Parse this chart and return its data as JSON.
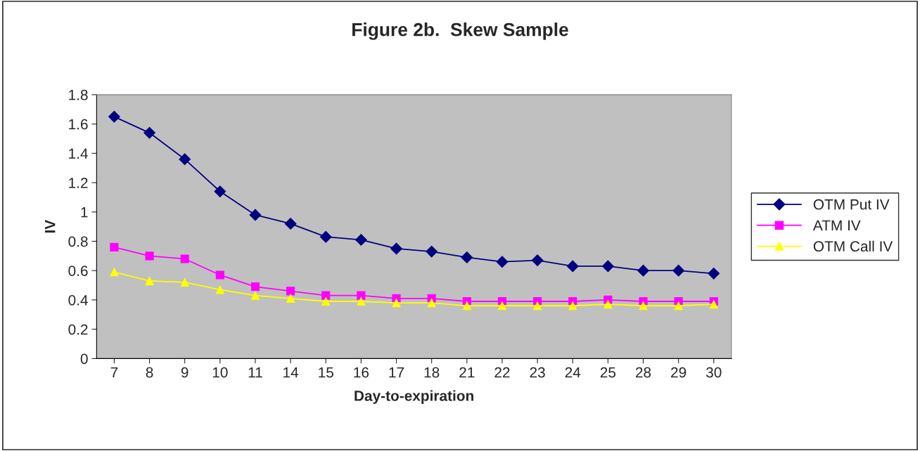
{
  "chart_data": {
    "type": "line",
    "title": "Figure 2b.  Skew Sample",
    "xlabel": "Day-to-expiration",
    "ylabel": "IV",
    "categories": [
      "7",
      "8",
      "9",
      "10",
      "11",
      "14",
      "15",
      "16",
      "17",
      "18",
      "21",
      "22",
      "23",
      "24",
      "25",
      "28",
      "29",
      "30"
    ],
    "series": [
      {
        "name": "OTM Put IV",
        "color": "#000080",
        "marker": "diamond",
        "values": [
          1.65,
          1.54,
          1.36,
          1.14,
          0.98,
          0.92,
          0.83,
          0.81,
          0.75,
          0.73,
          0.69,
          0.66,
          0.67,
          0.63,
          0.63,
          0.6,
          0.6,
          0.58
        ]
      },
      {
        "name": "ATM IV",
        "color": "#ff00ff",
        "marker": "square",
        "values": [
          0.76,
          0.7,
          0.68,
          0.57,
          0.49,
          0.46,
          0.43,
          0.43,
          0.41,
          0.41,
          0.39,
          0.39,
          0.39,
          0.39,
          0.4,
          0.39,
          0.39,
          0.39
        ]
      },
      {
        "name": "OTM Call IV",
        "color": "#ffff00",
        "marker": "triangle",
        "values": [
          0.59,
          0.53,
          0.52,
          0.47,
          0.43,
          0.41,
          0.39,
          0.39,
          0.38,
          0.38,
          0.36,
          0.36,
          0.36,
          0.36,
          0.37,
          0.36,
          0.36,
          0.37
        ]
      }
    ],
    "ylim": [
      0,
      1.8
    ],
    "yticks": [
      0,
      0.2,
      0.4,
      0.6,
      0.8,
      1,
      1.2,
      1.4,
      1.6,
      1.8
    ],
    "grid": false,
    "legend": "right"
  }
}
